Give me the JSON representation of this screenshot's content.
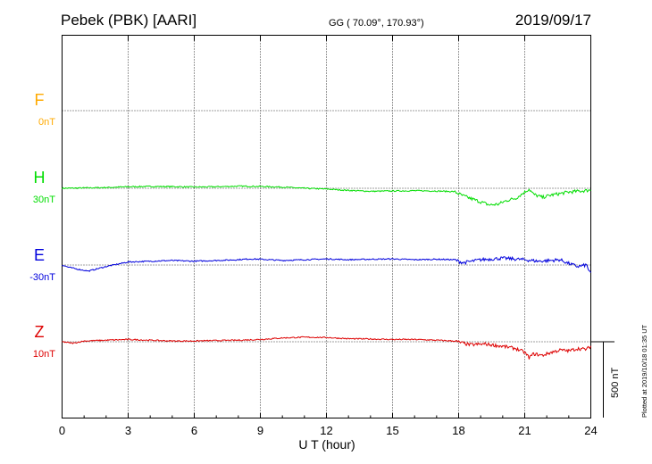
{
  "header": {
    "station": "Pebek (PBK)  [AARI]",
    "coords": "GG ( 70.09°, 170.93°)",
    "date": "2019/09/17"
  },
  "plotted_note": "Plotted at 2019/10/18 01:35 UT",
  "chart_data": {
    "type": "line",
    "xlabel": "U T (hour)",
    "xlim": [
      0,
      24
    ],
    "xticks": [
      0,
      3,
      6,
      9,
      12,
      15,
      18,
      21,
      24
    ],
    "xtick_labels": [
      "0",
      "3",
      "6",
      "9",
      "12",
      "15",
      "18",
      "21",
      "24"
    ],
    "grid": true,
    "scale_bar": {
      "label": "500 nT",
      "value_nT": 500
    },
    "series": [
      {
        "name": "F",
        "baseline_label": "0nT",
        "color": "#ffaa00",
        "t": [],
        "values": []
      },
      {
        "name": "H",
        "baseline_label": "30nT",
        "color": "#00dd00",
        "t": [
          0,
          1,
          2,
          3,
          4,
          5,
          6,
          7,
          8,
          9,
          10,
          11,
          12,
          13,
          14,
          15,
          16,
          17,
          17.8,
          18.2,
          18.6,
          19.0,
          19.4,
          19.8,
          20.2,
          20.6,
          21.0,
          21.2,
          21.4,
          21.8,
          22.2,
          22.6,
          23.0,
          23.4,
          23.8,
          24
        ],
        "values": [
          30,
          32,
          35,
          40,
          42,
          41,
          38,
          40,
          44,
          42,
          38,
          30,
          25,
          16,
          10,
          12,
          14,
          12,
          8,
          -20,
          -40,
          -60,
          -80,
          -75,
          -50,
          -35,
          5,
          25,
          -10,
          -30,
          -15,
          -5,
          5,
          10,
          15,
          20
        ]
      },
      {
        "name": "E",
        "baseline_label": "-30nT",
        "color": "#0000dd",
        "t": [
          0,
          0.3,
          0.8,
          1.2,
          2,
          3,
          4,
          5,
          6,
          7,
          8,
          8.5,
          9,
          10,
          11,
          12,
          13,
          14,
          15,
          16,
          17,
          17.8,
          18.2,
          18.6,
          19,
          20,
          21,
          21.6,
          22.2,
          22.6,
          23,
          23.4,
          23.8,
          24
        ],
        "values": [
          -30,
          -45,
          -60,
          -70,
          -40,
          -10,
          -5,
          0,
          -5,
          0,
          5,
          10,
          8,
          0,
          5,
          10,
          5,
          8,
          10,
          5,
          8,
          5,
          -15,
          -5,
          5,
          15,
          5,
          -5,
          0,
          5,
          -20,
          -40,
          -30,
          -90
        ]
      },
      {
        "name": "Z",
        "baseline_label": "10nT",
        "color": "#dd0000",
        "t": [
          0,
          0.5,
          1,
          2,
          3,
          4,
          5,
          6,
          7,
          8,
          9,
          10,
          11,
          12,
          13,
          14,
          15,
          16,
          17,
          17.8,
          18.5,
          19.2,
          20,
          20.6,
          21,
          21.2,
          21.4,
          21.8,
          22.2,
          22.6,
          23,
          23.4,
          23.8,
          24
        ],
        "values": [
          10,
          0,
          15,
          20,
          25,
          20,
          15,
          15,
          18,
          20,
          25,
          35,
          40,
          38,
          30,
          28,
          25,
          25,
          20,
          15,
          -10,
          -5,
          -20,
          -35,
          -60,
          -95,
          -70,
          -80,
          -60,
          -45,
          -50,
          -35,
          -40,
          -20
        ]
      }
    ]
  }
}
